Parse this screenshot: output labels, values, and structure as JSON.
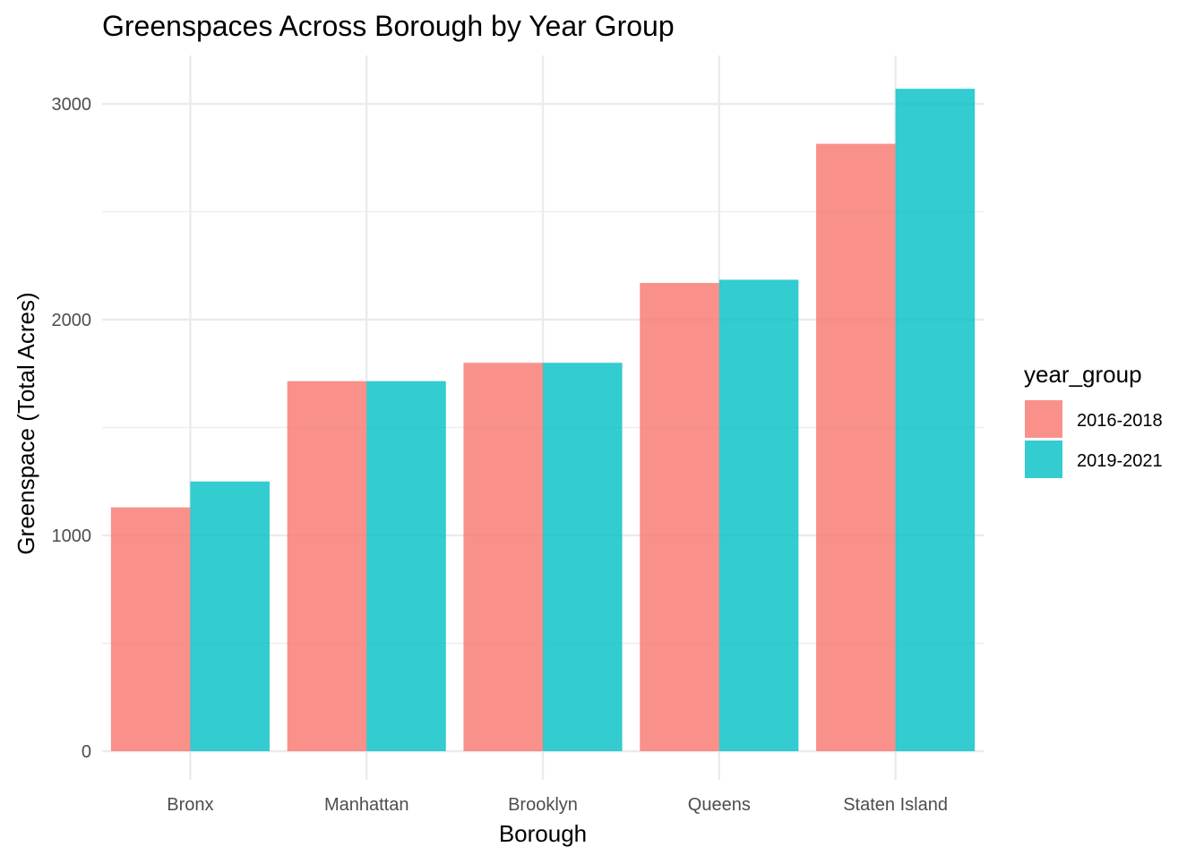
{
  "chart_data": {
    "type": "bar",
    "title": "Greenspaces Across Borough by Year Group",
    "xlabel": "Borough",
    "ylabel": "Greenspace (Total Acres)",
    "categories": [
      "Bronx",
      "Manhattan",
      "Brooklyn",
      "Queens",
      "Staten Island"
    ],
    "series": [
      {
        "name": "2016-2018",
        "color": "#F8766D",
        "values": [
          1130,
          1715,
          1800,
          2170,
          2815
        ]
      },
      {
        "name": "2019-2021",
        "color": "#00BFC4",
        "values": [
          1250,
          1715,
          1800,
          2185,
          3070
        ]
      }
    ],
    "ylim": [
      0,
      3225
    ],
    "yticks": [
      0,
      1000,
      2000,
      3000
    ],
    "ytick_labels": [
      "0",
      "1000",
      "2000",
      "3000"
    ],
    "legend": {
      "title": "year_group",
      "placement": "right"
    },
    "grid": true,
    "bar_opacity": 0.8
  }
}
